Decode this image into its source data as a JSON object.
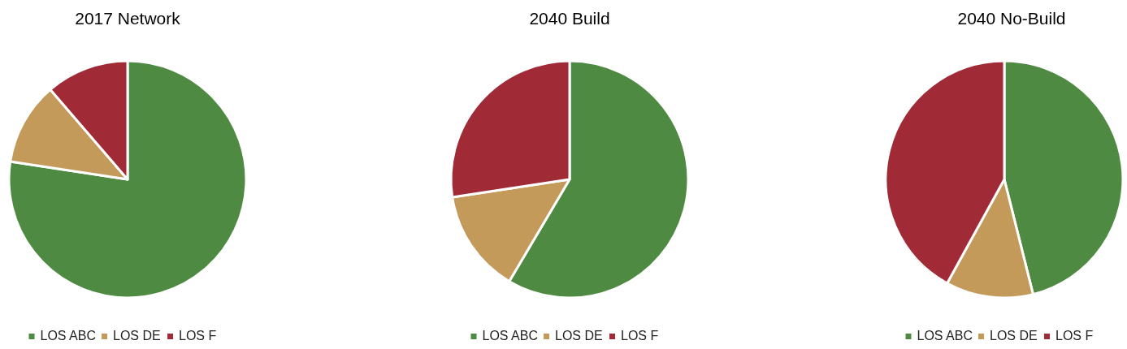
{
  "chart_data": [
    {
      "type": "pie",
      "title": "2017 Network",
      "categories": [
        "LOS ABC",
        "LOS DE",
        "LOS F"
      ],
      "values": [
        77.4,
        11.3,
        11.3
      ],
      "colors": [
        "#4e8a42",
        "#c39a5a",
        "#a12a37"
      ],
      "legend": "bottom"
    },
    {
      "type": "pie",
      "title": "2040 Build",
      "categories": [
        "LOS ABC",
        "LOS DE",
        "LOS F"
      ],
      "values": [
        58.5,
        14.1,
        27.4
      ],
      "colors": [
        "#4e8a42",
        "#c39a5a",
        "#a12a37"
      ],
      "legend": "bottom"
    },
    {
      "type": "pie",
      "title": "2040 No-Build",
      "categories": [
        "LOS ABC",
        "LOS DE",
        "LOS F"
      ],
      "values": [
        46.1,
        11.9,
        42.0
      ],
      "colors": [
        "#4e8a42",
        "#c39a5a",
        "#a12a37"
      ],
      "legend": "bottom"
    }
  ]
}
